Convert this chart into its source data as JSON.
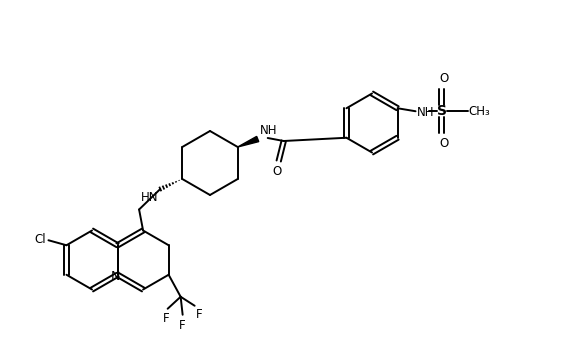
{
  "background_color": "#ffffff",
  "line_color": "#000000",
  "line_width": 1.4,
  "font_size": 8.5,
  "figsize": [
    5.69,
    3.45
  ],
  "dpi": 100,
  "xlim": [
    0,
    5.69
  ],
  "ylim": [
    0,
    3.45
  ]
}
